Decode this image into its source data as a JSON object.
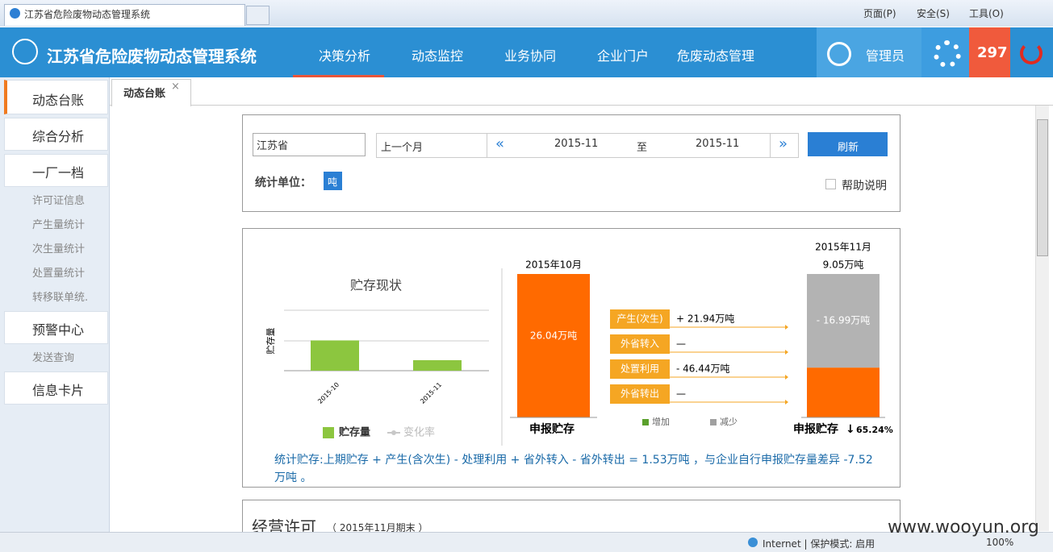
{
  "browser": {
    "tab_title": "江苏省危险废物动态管理系统",
    "menu": [
      "页面(P)",
      "安全(S)",
      "工具(O)"
    ],
    "status": "Internet | 保护模式: 启用",
    "zoom": "100%"
  },
  "header": {
    "title": "江苏省危险废物动态管理系统",
    "nav": [
      "决策分析",
      "动态监控",
      "业务协同",
      "企业门户",
      "危废动态管理"
    ],
    "user": "管理员",
    "badge": "297"
  },
  "sidebar": {
    "items": [
      "动态台账",
      "综合分析",
      "一厂一档",
      "预警中心",
      "信息卡片"
    ],
    "sub_archive": [
      "许可证信息",
      "产生量统计",
      "次生量统计",
      "处置量统计",
      "转移联单统."
    ],
    "sub_warning": [
      "发送查询"
    ]
  },
  "tab": {
    "title": "动态台账",
    "close": "×"
  },
  "filter": {
    "region": "江苏省",
    "period": "上一个月",
    "prev": "«",
    "start": "2015-11",
    "to": "至",
    "end": "2015-11",
    "next": "»",
    "refresh": "刷新",
    "unit_label": "统计单位：",
    "unit": "吨",
    "help": "帮助说明"
  },
  "chart_data": [
    {
      "type": "bar",
      "title": "贮存现状",
      "y_label": "贮存量",
      "categories": [
        "2015-10",
        "2015-11"
      ],
      "ylim": [
        0,
        52
      ],
      "series": [
        {
          "name": "贮存量",
          "color": "#8cc63f",
          "values": [
            26.04,
            9.05
          ]
        },
        {
          "name": "变化率",
          "color": "#c8c8c8",
          "values": [
            null,
            null
          ]
        }
      ]
    },
    {
      "type": "waterfall",
      "start": {
        "date": "2015年10月",
        "value": 26.04,
        "value_label": "26.04万吨",
        "label": "申报贮存",
        "color": "#ff6a00"
      },
      "end": {
        "date": "2015年11月",
        "value": 9.05,
        "value_label": "9.05万吨",
        "decrease": 16.99,
        "decrease_label": "- 16.99万吨",
        "label": "申报贮存",
        "change_arrow": "↓",
        "change": "65.24%",
        "color": "#ff6a00",
        "decrease_color": "#b3b3b3"
      },
      "flows": [
        {
          "name": "产生(次生)",
          "value_label": "+ 21.94万吨"
        },
        {
          "name": "外省转入",
          "value_label": "—"
        },
        {
          "name": "处置利用",
          "value_label": "- 46.44万吨"
        },
        {
          "name": "外省转出",
          "value_label": "—"
        }
      ],
      "flow_color": "#f5a623",
      "legend": [
        {
          "name": "增加",
          "color": "#5aa02c"
        },
        {
          "name": "减少",
          "color": "#a0a0a0"
        }
      ]
    }
  ],
  "formula": "统计贮存:上期贮存 + 产生(含次生) - 处理利用 + 省外转入 - 省外转出 = 1.53万吨 ，与企业自行申报贮存量差异 -7.52万吨 。",
  "section": {
    "title": "经营许可",
    "subtitle": "（ 2015年11月期末 ）"
  },
  "watermark": "www.wooyun.org"
}
